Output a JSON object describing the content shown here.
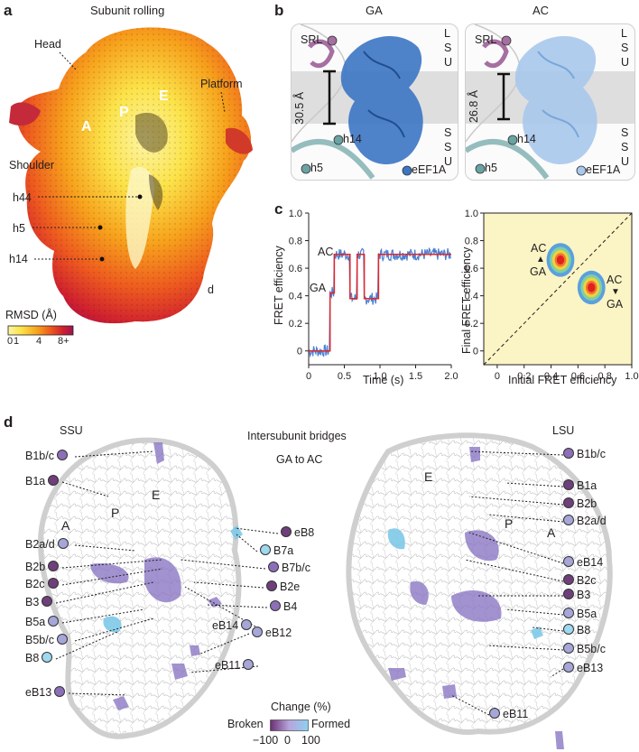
{
  "panel_a": {
    "letter": "a",
    "title": "Subunit rolling",
    "labels": {
      "head": "Head",
      "platform": "Platform",
      "shoulder": "Shoulder",
      "a": "A",
      "p": "P",
      "e": "E",
      "h44": "h44",
      "h5": "h5",
      "h14": "h14",
      "d": "d"
    },
    "rmsd_title": "RMSD (Å)",
    "rmsd_ticks": [
      "0",
      "1",
      "4",
      "8+"
    ],
    "colors": [
      "#fdf5a6",
      "#fce34a",
      "#f7a21c",
      "#ee5a1f",
      "#cf1f2f",
      "#9c1450"
    ]
  },
  "panel_b": {
    "letter": "b",
    "left": {
      "title": "GA",
      "distance": "30.5 Å",
      "srl": "SRL",
      "h14": "h14",
      "h5": "h5",
      "eef": "eEF1A",
      "lsu": [
        "L",
        "S",
        "U"
      ],
      "ssu": [
        "S",
        "S",
        "U"
      ]
    },
    "right": {
      "title": "AC",
      "distance": "26.8 Å",
      "srl": "SRL",
      "h14": "h14",
      "h5": "h5",
      "eef": "eEF1A",
      "lsu": [
        "L",
        "S",
        "U"
      ],
      "ssu": [
        "S",
        "S",
        "U"
      ]
    },
    "colors": {
      "ga": "#3b76c4",
      "ac": "#a9c8ec",
      "srl": "#a66fa2",
      "h": "#6aa3a3"
    }
  },
  "panel_c": {
    "letter": "c",
    "trace": {
      "ylabel": "FRET efficiency",
      "xlabel": "Time (s)",
      "ac_label": "AC",
      "ga_label": "GA",
      "x_ticks": [
        "0",
        "0.5",
        "1.0",
        "1.5",
        "2.0"
      ],
      "y_ticks": [
        "0",
        "0.2",
        "0.4",
        "0.6",
        "0.8",
        "1.0"
      ],
      "xlim": [
        0,
        2.0
      ],
      "ylim": [
        -0.1,
        1.0
      ]
    },
    "tdp": {
      "ylabel": "Final FRET efficiency",
      "xlabel": "Initial FRET efficiency",
      "x_ticks": [
        "0",
        "0.2",
        "0.4",
        "0.6",
        "0.8",
        "1.0"
      ],
      "y_ticks": [
        "0",
        "0.2",
        "0.4",
        "0.6",
        "0.8",
        "1.0"
      ],
      "upper_label_top": "AC",
      "upper_label_bottom": "GA",
      "lower_label_top": "AC",
      "lower_label_bottom": "GA"
    }
  },
  "chart_data": [
    {
      "type": "line",
      "xlabel": "Time (s)",
      "ylabel": "FRET efficiency",
      "xlim": [
        0,
        2.0
      ],
      "ylim": [
        -0.1,
        1.0
      ],
      "series": [
        {
          "x": [
            0,
            0.3,
            0.3,
            0.36,
            0.36,
            0.58,
            0.58,
            0.68,
            0.68,
            0.78,
            0.78,
            0.98,
            0.98,
            1.08,
            1.08,
            2.0
          ],
          "values": [
            0,
            0,
            0.42,
            0.42,
            0.7,
            0.7,
            0.38,
            0.38,
            0.7,
            0.7,
            0.38,
            0.38,
            0.7,
            0.7,
            0.7,
            0.7
          ]
        }
      ]
    },
    {
      "type": "heatmap",
      "xlabel": "Initial FRET efficiency",
      "ylabel": "Final FRET efficiency",
      "xlim": [
        -0.1,
        1.0
      ],
      "ylim": [
        -0.1,
        1.0
      ],
      "peaks": [
        {
          "x": 0.47,
          "y": 0.66
        },
        {
          "x": 0.7,
          "y": 0.46
        }
      ]
    }
  ],
  "panel_d": {
    "letter": "d",
    "ssu": "SSU",
    "lsu": "LSU",
    "title1": "Intersubunit bridges",
    "title2": "GA to AC",
    "site_a": "A",
    "site_p": "P",
    "site_e": "E",
    "site_e2": "E",
    "site_p2": "P",
    "site_a2": "A",
    "left_bridges": [
      "B1b/c",
      "B1a",
      "B2a/d",
      "B2b",
      "B2c",
      "B3",
      "B5a",
      "B5b/c",
      "B8",
      "eB13"
    ],
    "center_bridges": [
      "eB8",
      "B7a",
      "B7b/c",
      "B2e",
      "B4",
      "eB14",
      "eB12",
      "eB11"
    ],
    "right_bridges": [
      "B1b/c",
      "B1a",
      "B2b",
      "B2a/d",
      "eB14",
      "B2c",
      "B3",
      "B5a",
      "B8",
      "B5b/c",
      "eB13",
      "eB11"
    ],
    "legend_title": "Change (%)",
    "legend_broken": "Broken",
    "legend_formed": "Formed",
    "legend_ticks": [
      "−100",
      "0",
      "100"
    ]
  }
}
